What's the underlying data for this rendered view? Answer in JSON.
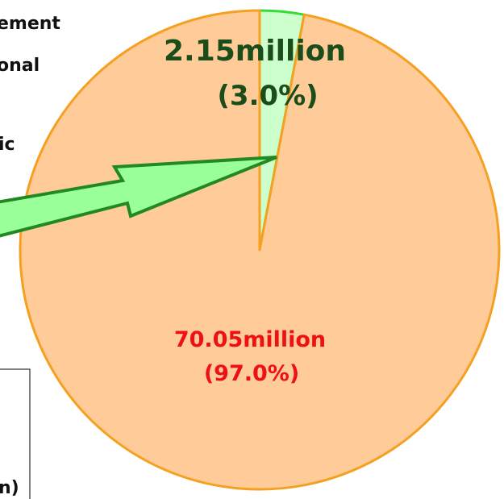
{
  "chart_data": {
    "type": "pie",
    "categories": [
      null,
      null
    ],
    "values": [
      2.15,
      70.05
    ],
    "value_labels": [
      "2.15million",
      "70.05million"
    ],
    "percent_labels": [
      "(3.0%)",
      "(97.0%)"
    ],
    "colors": [
      "#ccffcc",
      "#ffcc99"
    ],
    "edge_colors": [
      "#33dd33",
      "#f5a020"
    ],
    "label_colors": [
      "#1a4d1a",
      "#ee1111"
    ],
    "annotations": [
      "ement",
      "onal",
      "ic",
      "n)"
    ]
  }
}
